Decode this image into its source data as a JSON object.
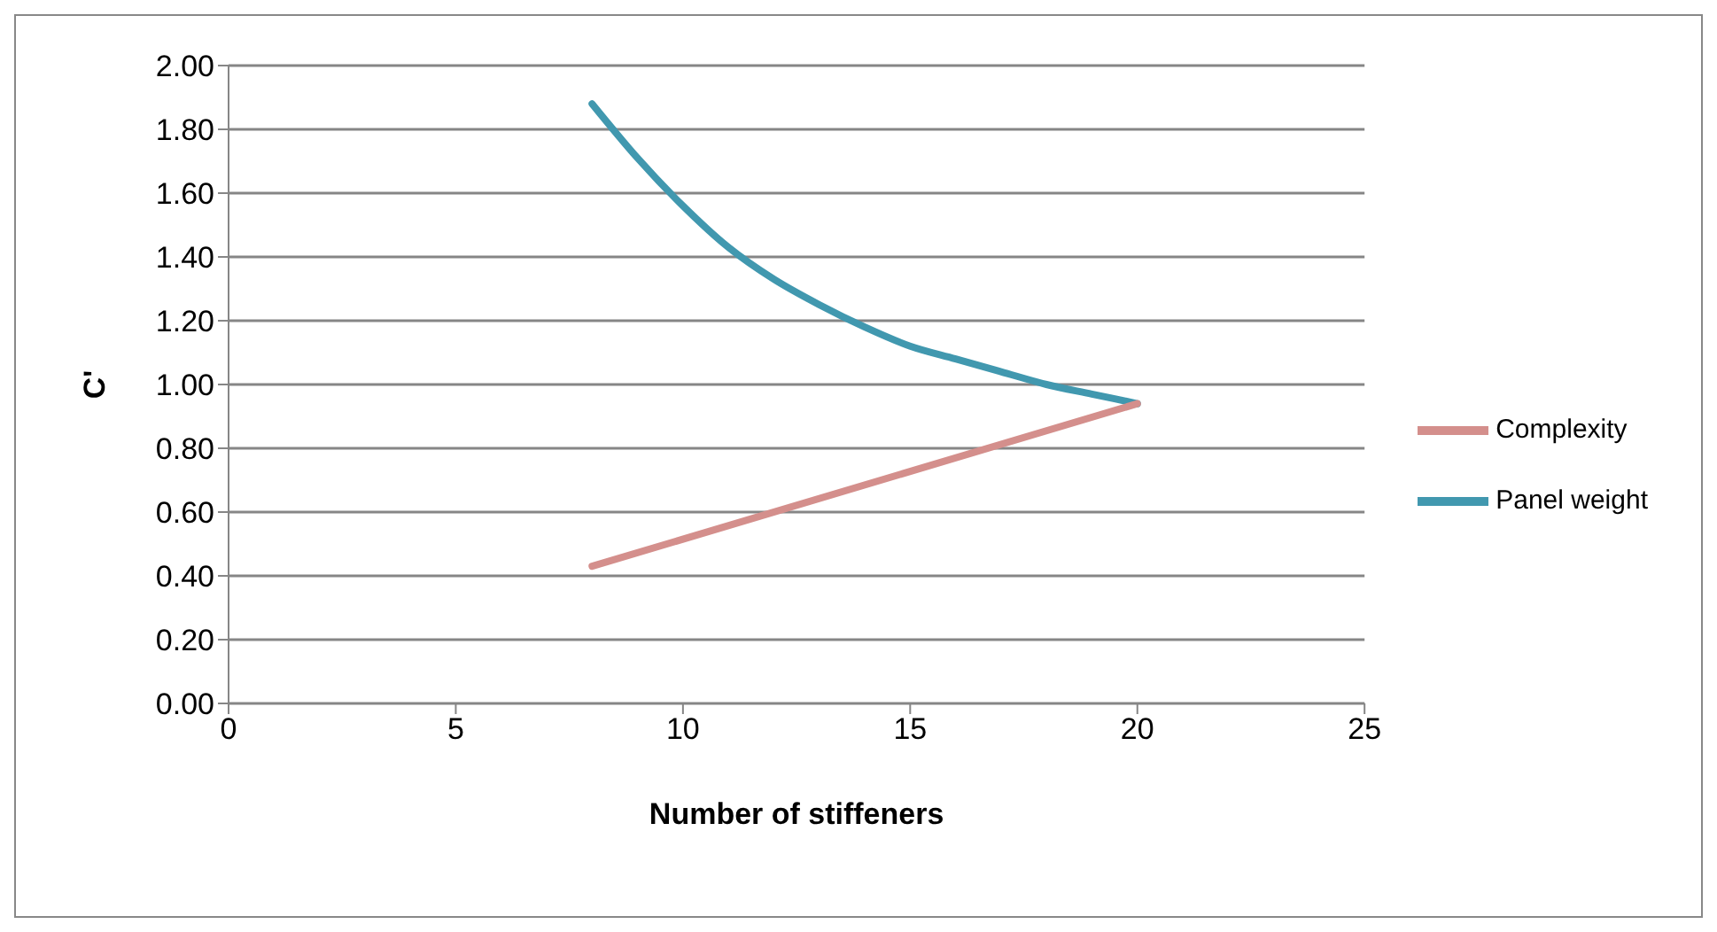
{
  "chart_data": {
    "type": "line",
    "xlabel": "Number of stiffeners",
    "ylabel": "C'",
    "xlim": [
      0,
      25
    ],
    "xticks": [
      0,
      5,
      10,
      15,
      20,
      25
    ],
    "ylim": [
      0,
      2
    ],
    "yticks": [
      {
        "value": 0,
        "label": "0.00"
      },
      {
        "value": 0.2,
        "label": "0.20"
      },
      {
        "value": 0.4,
        "label": "0.40"
      },
      {
        "value": 0.6,
        "label": "0.60"
      },
      {
        "value": 0.8,
        "label": "0.80"
      },
      {
        "value": 1,
        "label": "1.00"
      },
      {
        "value": 1.2,
        "label": "1.20"
      },
      {
        "value": 1.4,
        "label": "1.40"
      },
      {
        "value": 1.6,
        "label": "1.60"
      },
      {
        "value": 1.8,
        "label": "1.80"
      },
      {
        "value": 2,
        "label": "2.00"
      }
    ],
    "grid": "y",
    "legend": "right",
    "marker": "none",
    "line_style": "solid",
    "series": [
      {
        "name": "Panel weight",
        "color": "#4198af",
        "x": [
          8,
          9,
          10,
          11,
          12,
          13,
          14,
          15,
          16,
          17,
          18,
          19,
          20
        ],
        "values": [
          1.88,
          1.71,
          1.56,
          1.43,
          1.33,
          1.25,
          1.18,
          1.12,
          1.08,
          1.04,
          1.0,
          0.97,
          0.94
        ]
      },
      {
        "name": "Complexity",
        "color": "#d48f8c",
        "x": [
          8,
          20
        ],
        "values": [
          0.43,
          0.94
        ]
      }
    ]
  }
}
